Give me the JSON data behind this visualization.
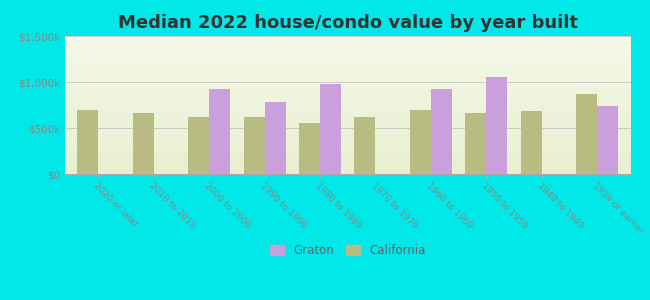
{
  "title": "Median 2022 house/condo value by year built",
  "categories": [
    "2020 or later",
    "2010 to 2019",
    "2000 to 2009",
    "1990 to 1999",
    "1980 to 1989",
    "1970 to 1979",
    "1960 to 1969",
    "1950 to 1959",
    "1940 to 1949",
    "1939 or earlier"
  ],
  "graton_values": [
    null,
    null,
    925000,
    780000,
    975000,
    null,
    920000,
    1050000,
    null,
    740000
  ],
  "california_values": [
    700000,
    665000,
    620000,
    620000,
    555000,
    620000,
    700000,
    660000,
    680000,
    875000
  ],
  "graton_color": "#c9a0dc",
  "california_color": "#b8bc82",
  "ylim": [
    0,
    1500000
  ],
  "ytick_labels": [
    "$0",
    "$500k",
    "$1,000k",
    "$1,500k"
  ],
  "background_color": "#00e8e8",
  "plot_bg": "#eef3d8",
  "legend_graton": "Graton",
  "legend_california": "California",
  "title_fontsize": 13,
  "bar_width": 0.38
}
